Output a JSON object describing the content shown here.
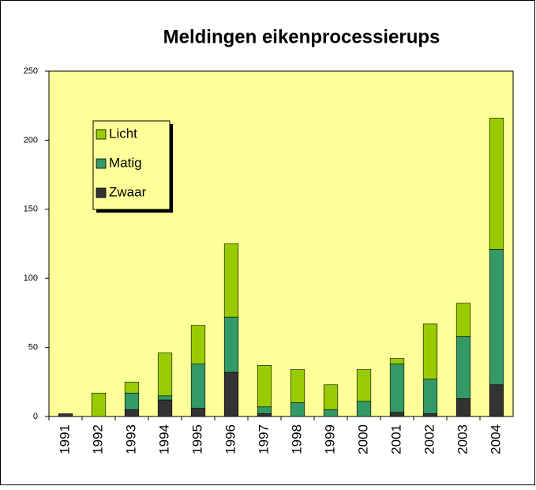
{
  "chart_data": {
    "type": "stacked_bar",
    "title": "Meldingen eikenprocessierups",
    "categories": [
      "1991",
      "1992",
      "1993",
      "1994",
      "1995",
      "1996",
      "1997",
      "1998",
      "1999",
      "2000",
      "2001",
      "2002",
      "2003",
      "2004"
    ],
    "series": [
      {
        "name": "Licht",
        "color": "#99cc00",
        "values": [
          0,
          17,
          8,
          31,
          28,
          53,
          30,
          24,
          18,
          23,
          4,
          40,
          24,
          95
        ]
      },
      {
        "name": "Matig",
        "color": "#339966",
        "values": [
          0,
          0,
          12,
          3,
          32,
          40,
          5,
          10,
          5,
          11,
          35,
          25,
          45,
          98
        ]
      },
      {
        "name": "Zwaar",
        "color": "#333333",
        "values": [
          2,
          0,
          5,
          12,
          6,
          32,
          2,
          0,
          0,
          0,
          3,
          2,
          13,
          23
        ]
      }
    ],
    "ylim": [
      0,
      250
    ],
    "yticks": [
      0,
      50,
      100,
      150,
      200,
      250
    ],
    "grid": false,
    "legend": "upper left"
  }
}
